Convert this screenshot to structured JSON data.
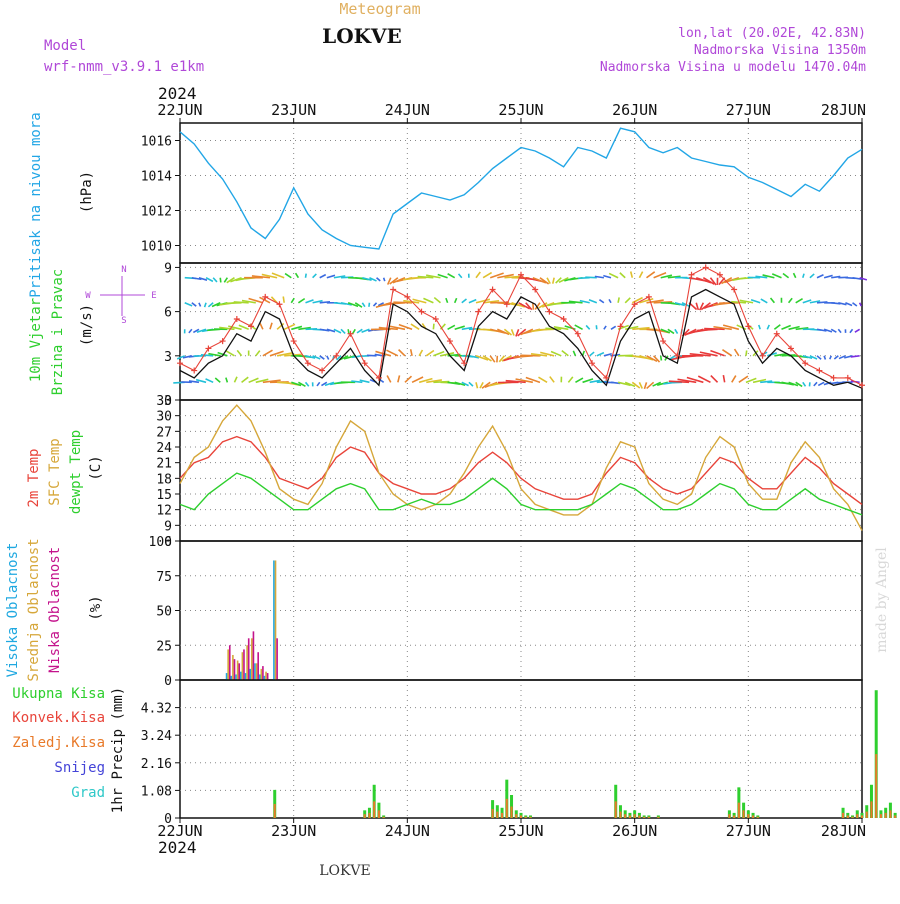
{
  "header": {
    "meteogram_label": "Meteogram",
    "station": "LOKVE",
    "model_label": "Model",
    "model_name": "wrf-nmm_v3.9.1  e1km",
    "lonlat": "lon,lat (20.02E, 42.83N)",
    "elevation": "Nadmorska Visina 1350m",
    "model_elevation": "Nadmorska Visina u modelu 1470.04m",
    "year_top": "2024",
    "year_bottom": "2024",
    "footer_station": "LOKVE",
    "credit": "made by Angel"
  },
  "colors": {
    "pressure": "#22a6e6",
    "temp2m": "#e8443a",
    "sfc": "#d6a73a",
    "dewpt": "#2ecf2e",
    "high_cloud": "#1fa8e0",
    "mid_cloud": "#d6a73a",
    "low_cloud": "#c4138c",
    "total_precip": "#2ecf2e",
    "convective": "#e8443a",
    "frozen": "#e87a2a",
    "snow": "#4444d8",
    "hail": "#2ec8c8",
    "model_label": "#b048d8",
    "meteogram": "#e0b060",
    "grid": "#888888"
  },
  "chart_data": [
    {
      "id": "pressure",
      "type": "line",
      "x_categories": [
        "22JUN",
        "23JUN",
        "24JUN",
        "25JUN",
        "26JUN",
        "27JUN",
        "28JUN"
      ],
      "y_ticks": [
        "1016",
        "1014",
        "1012",
        "1010"
      ],
      "ylim": [
        1009,
        1017
      ],
      "ylabel_line1": "Pritisak na nivou mora",
      "ylabel_line2": "(hPa)",
      "x_hours": [
        0,
        3,
        6,
        9,
        12,
        15,
        18,
        21,
        24,
        27,
        30,
        33,
        36,
        39,
        42,
        45,
        48,
        51,
        54,
        57,
        60,
        63,
        66,
        69,
        72,
        75,
        78,
        81,
        84,
        87,
        90,
        93,
        96,
        99,
        102,
        105,
        108,
        111,
        114,
        117,
        120,
        123,
        126,
        129,
        132,
        135,
        138,
        141,
        144
      ],
      "values": [
        1016.5,
        1015.8,
        1014.7,
        1013.8,
        1012.5,
        1011.0,
        1010.4,
        1011.5,
        1013.3,
        1011.8,
        1010.9,
        1010.4,
        1010.0,
        1009.9,
        1009.8,
        1011.8,
        1012.4,
        1013.0,
        1012.8,
        1012.6,
        1012.9,
        1013.6,
        1014.4,
        1015.0,
        1015.6,
        1015.4,
        1015.0,
        1014.5,
        1015.6,
        1015.4,
        1015.0,
        1016.7,
        1016.5,
        1015.6,
        1015.3,
        1015.6,
        1015.0,
        1014.8,
        1014.6,
        1014.5,
        1013.9,
        1013.6,
        1013.2,
        1012.8,
        1013.5,
        1013.1,
        1014.0,
        1015.0,
        1015.5
      ]
    },
    {
      "id": "wind",
      "type": "line",
      "x_categories": [
        "22JUN",
        "23JUN",
        "24JUN",
        "25JUN",
        "26JUN",
        "27JUN",
        "28JUN"
      ],
      "y_ticks": [
        "9",
        "6",
        "3",
        "0"
      ],
      "ylim": [
        0,
        9.3
      ],
      "ylabel_line1": "10m Vjetar",
      "ylabel_line2": "Brzina i Pravac",
      "ylabel_unit": "(m/s)",
      "compass": [
        "N",
        "W",
        "E",
        "S"
      ],
      "x_hours": [
        0,
        3,
        6,
        9,
        12,
        15,
        18,
        21,
        24,
        27,
        30,
        33,
        36,
        39,
        42,
        45,
        48,
        51,
        54,
        57,
        60,
        63,
        66,
        69,
        72,
        75,
        78,
        81,
        84,
        87,
        90,
        93,
        96,
        99,
        102,
        105,
        108,
        111,
        114,
        117,
        120,
        123,
        126,
        129,
        132,
        135,
        138,
        141,
        144
      ],
      "speed": [
        2.0,
        1.5,
        2.5,
        3.0,
        4.5,
        4.0,
        6.0,
        5.5,
        3.0,
        2.0,
        1.5,
        2.5,
        3.5,
        2.0,
        1.0,
        6.5,
        6.0,
        5.0,
        4.5,
        3.0,
        2.0,
        5.0,
        6.0,
        5.5,
        7.0,
        6.5,
        5.0,
        4.5,
        3.5,
        2.0,
        1.0,
        4.0,
        5.5,
        6.0,
        3.0,
        2.5,
        7.0,
        7.5,
        7.0,
        6.5,
        4.0,
        2.5,
        3.5,
        3.0,
        2.0,
        1.5,
        1.0,
        1.2,
        0.8
      ],
      "gust": [
        2.5,
        2.0,
        3.5,
        4.0,
        5.5,
        5.0,
        7.0,
        6.5,
        4.0,
        2.5,
        2.0,
        3.0,
        4.5,
        2.5,
        1.5,
        7.5,
        7.0,
        6.0,
        5.5,
        4.0,
        2.5,
        6.0,
        7.5,
        6.5,
        8.5,
        7.5,
        6.0,
        5.5,
        4.5,
        2.5,
        1.5,
        5.0,
        6.5,
        7.0,
        4.0,
        3.0,
        8.5,
        9.0,
        8.5,
        7.5,
        5.0,
        3.0,
        4.5,
        3.5,
        2.5,
        2.0,
        1.5,
        1.5,
        1.0
      ]
    },
    {
      "id": "temperature",
      "type": "line",
      "x_categories": [
        "22JUN",
        "23JUN",
        "24JUN",
        "25JUN",
        "26JUN",
        "27JUN",
        "28JUN"
      ],
      "y_ticks": [
        "33",
        "30",
        "27",
        "24",
        "21",
        "18",
        "15",
        "12",
        "9",
        "6"
      ],
      "ylim": [
        6,
        33
      ],
      "ylabel_line1": "2m Temp",
      "ylabel_line2": "SFC Temp",
      "ylabel_line3": "dewpt Temp",
      "ylabel_unit": "(C)",
      "x_hours": [
        0,
        3,
        6,
        9,
        12,
        15,
        18,
        21,
        24,
        27,
        30,
        33,
        36,
        39,
        42,
        45,
        48,
        51,
        54,
        57,
        60,
        63,
        66,
        69,
        72,
        75,
        78,
        81,
        84,
        87,
        90,
        93,
        96,
        99,
        102,
        105,
        108,
        111,
        114,
        117,
        120,
        123,
        126,
        129,
        132,
        135,
        138,
        141,
        144
      ],
      "series": [
        {
          "name": "2m Temp",
          "values": [
            18,
            21,
            22,
            25,
            26,
            25,
            22,
            18,
            17,
            16,
            18,
            22,
            24,
            23,
            19,
            17,
            16,
            15,
            15,
            16,
            18,
            21,
            23,
            21,
            18,
            16,
            15,
            14,
            14,
            15,
            19,
            22,
            21,
            18,
            16,
            15,
            16,
            19,
            22,
            21,
            18,
            16,
            16,
            19,
            22,
            20,
            17,
            15,
            13
          ]
        },
        {
          "name": "SFC Temp",
          "values": [
            17,
            22,
            24,
            29,
            32,
            29,
            23,
            16,
            14,
            13,
            17,
            24,
            29,
            27,
            19,
            15,
            13,
            12,
            13,
            15,
            19,
            24,
            28,
            23,
            16,
            13,
            12,
            11,
            11,
            13,
            20,
            25,
            24,
            17,
            14,
            13,
            15,
            22,
            26,
            24,
            17,
            14,
            14,
            21,
            25,
            22,
            16,
            13,
            8
          ]
        },
        {
          "name": "dewpt Temp",
          "values": [
            13,
            12,
            15,
            17,
            19,
            18,
            16,
            14,
            12,
            12,
            14,
            16,
            17,
            16,
            12,
            12,
            13,
            14,
            13,
            13,
            14,
            16,
            18,
            16,
            13,
            12,
            12,
            12,
            12,
            13,
            15,
            17,
            16,
            14,
            12,
            12,
            13,
            15,
            17,
            16,
            13,
            12,
            12,
            14,
            16,
            14,
            13,
            12,
            11
          ]
        }
      ]
    },
    {
      "id": "cloud",
      "type": "bar",
      "x_categories": [
        "22JUN",
        "23JUN",
        "24JUN",
        "25JUN",
        "26JUN",
        "27JUN",
        "28JUN"
      ],
      "y_ticks": [
        "100",
        "75",
        "50",
        "25",
        "0"
      ],
      "ylim": [
        0,
        100
      ],
      "ylabel_line1": "Visoka Oblacnost",
      "ylabel_line2": "Srednja Oblacnost",
      "ylabel_line3": "Niska Oblacnost",
      "ylabel_unit": "(%)",
      "x_hours": [
        10,
        11,
        12,
        13,
        14,
        15,
        16,
        17,
        18,
        20,
        38,
        39,
        40,
        41,
        42,
        43,
        44,
        45,
        46,
        47,
        48,
        49,
        66,
        67,
        68,
        69,
        70,
        71,
        72,
        73,
        74,
        75,
        76,
        77,
        78,
        92,
        93,
        94,
        95,
        96,
        97,
        98,
        99,
        100,
        101,
        102,
        103,
        104,
        112,
        114,
        116,
        117,
        118,
        119,
        120,
        121,
        122,
        123,
        124,
        125,
        129,
        138,
        139,
        140,
        141,
        142,
        143,
        144,
        145,
        146,
        147,
        148,
        149,
        150,
        151
      ],
      "series": [
        {
          "name": "Visoka Oblacnost",
          "values": [
            5,
            3,
            4,
            6,
            5,
            8,
            12,
            4,
            3,
            86,
            0,
            0,
            0,
            0,
            0,
            0,
            0,
            0,
            0,
            0,
            0,
            0,
            0,
            0,
            0,
            0,
            0,
            0,
            0,
            0,
            0,
            0,
            0,
            0,
            0,
            0,
            0,
            0,
            0,
            0,
            0,
            0,
            0,
            0,
            0,
            0,
            0,
            0,
            0,
            0,
            0,
            0,
            0,
            0,
            0,
            0,
            0,
            0,
            0,
            0,
            0,
            0,
            0,
            0,
            0,
            0,
            0,
            0,
            0,
            0,
            0,
            0,
            0,
            0,
            0
          ]
        },
        {
          "name": "Srednja Oblacnost",
          "values": [
            22,
            18,
            14,
            20,
            25,
            30,
            12,
            8,
            6,
            86,
            0,
            0,
            0,
            0,
            0,
            0,
            0,
            0,
            0,
            0,
            0,
            0,
            0,
            0,
            0,
            0,
            0,
            0,
            0,
            0,
            0,
            0,
            0,
            0,
            0,
            0,
            0,
            0,
            0,
            0,
            0,
            0,
            0,
            0,
            0,
            0,
            0,
            0,
            0,
            0,
            0,
            0,
            0,
            0,
            0,
            0,
            0,
            0,
            0,
            0,
            0,
            0,
            0,
            0,
            0,
            0,
            0,
            0,
            0,
            0,
            0,
            0,
            0,
            0,
            0
          ]
        },
        {
          "name": "Niska Oblacnost",
          "values": [
            25,
            15,
            12,
            22,
            30,
            35,
            20,
            10,
            5,
            30,
            0,
            0,
            0,
            0,
            0,
            0,
            0,
            0,
            0,
            0,
            0,
            0,
            0,
            0,
            0,
            0,
            0,
            0,
            0,
            0,
            0,
            0,
            0,
            0,
            0,
            0,
            0,
            0,
            0,
            0,
            0,
            0,
            0,
            0,
            0,
            0,
            0,
            0,
            0,
            0,
            0,
            0,
            0,
            0,
            0,
            0,
            0,
            0,
            0,
            0,
            0,
            0,
            0,
            0,
            0,
            0,
            0,
            0,
            0,
            0,
            0,
            0,
            0,
            0,
            0
          ]
        }
      ]
    },
    {
      "id": "precip",
      "type": "bar",
      "x_categories": [
        "22JUN",
        "23JUN",
        "24JUN",
        "25JUN",
        "26JUN",
        "27JUN",
        "28JUN"
      ],
      "y_ticks": [
        "4.32",
        "3.24",
        "2.16",
        "1.08",
        "0"
      ],
      "ylim": [
        0,
        5.4
      ],
      "ylabel": "1hr Precip (mm)",
      "legend": [
        "Ukupna Kisa",
        "Konvek.Kisa",
        "Zaledj.Kisa",
        "Snijeg",
        "Grad"
      ],
      "x_hours": [
        20,
        39,
        40,
        41,
        42,
        43,
        66,
        67,
        68,
        69,
        70,
        71,
        72,
        73,
        74,
        92,
        93,
        94,
        95,
        96,
        97,
        98,
        99,
        100,
        101,
        116,
        117,
        118,
        119,
        120,
        121,
        122,
        140,
        141,
        142,
        143,
        144,
        145,
        146,
        147,
        148,
        149,
        150,
        151
      ],
      "values": [
        1.1,
        0.3,
        0.4,
        1.3,
        0.6,
        0.1,
        0.7,
        0.5,
        0.4,
        1.5,
        0.9,
        0.3,
        0.2,
        0.1,
        0.1,
        1.3,
        0.5,
        0.3,
        0.2,
        0.3,
        0.2,
        0.1,
        0.1,
        0.0,
        0.1,
        0.3,
        0.2,
        1.2,
        0.6,
        0.3,
        0.2,
        0.1,
        0.4,
        0.2,
        0.1,
        0.3,
        0.2,
        0.5,
        1.3,
        5.0,
        0.3,
        0.4,
        0.6,
        0.2
      ]
    }
  ]
}
